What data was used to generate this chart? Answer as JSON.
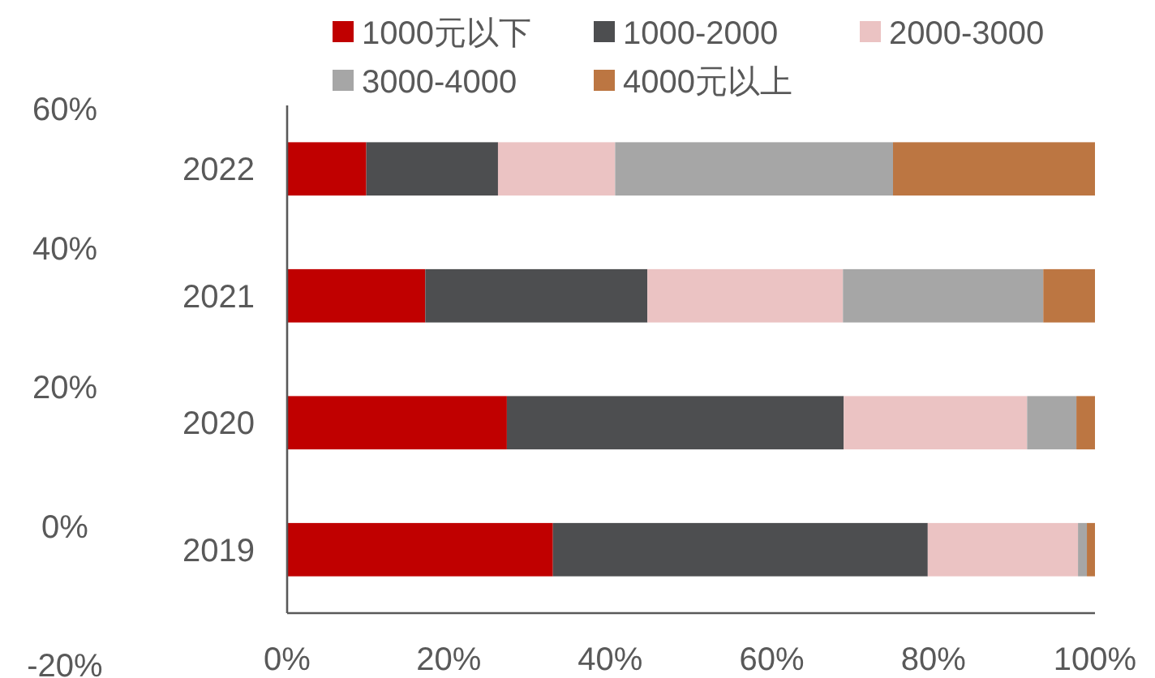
{
  "chart_data": {
    "type": "bar",
    "orientation": "horizontal",
    "stacked": true,
    "categories": [
      "2022",
      "2021",
      "2020",
      "2019"
    ],
    "series": [
      {
        "name": "1000元以下",
        "color": "#c00000",
        "values": [
          9.8,
          17.1,
          27.2,
          32.9
        ]
      },
      {
        "name": "1000-2000",
        "color": "#4d4e50",
        "values": [
          16.3,
          27.5,
          41.7,
          46.4
        ]
      },
      {
        "name": "2000-3000",
        "color": "#ebc3c3",
        "values": [
          14.5,
          24.2,
          22.7,
          18.6
        ]
      },
      {
        "name": "3000-4000",
        "color": "#a6a6a6",
        "values": [
          34.4,
          24.8,
          6.1,
          1.1
        ]
      },
      {
        "name": "4000元以上",
        "color": "#bc7642",
        "values": [
          25.0,
          6.4,
          2.3,
          1.0
        ]
      }
    ],
    "xlim": [
      0,
      100
    ],
    "xticks": [
      {
        "value": 0,
        "label": "0%"
      },
      {
        "value": 20,
        "label": "20%"
      },
      {
        "value": 40,
        "label": "40%"
      },
      {
        "value": 60,
        "label": "60%"
      },
      {
        "value": 80,
        "label": "80%"
      },
      {
        "value": 100,
        "label": "100%"
      }
    ],
    "y2lim": [
      -20,
      60
    ],
    "y2ticks": [
      {
        "value": -20,
        "label": "-20%"
      },
      {
        "value": 0,
        "label": "0%"
      },
      {
        "value": 20,
        "label": "20%"
      },
      {
        "value": 40,
        "label": "40%"
      },
      {
        "value": 60,
        "label": "60%"
      }
    ],
    "legend": "top"
  }
}
